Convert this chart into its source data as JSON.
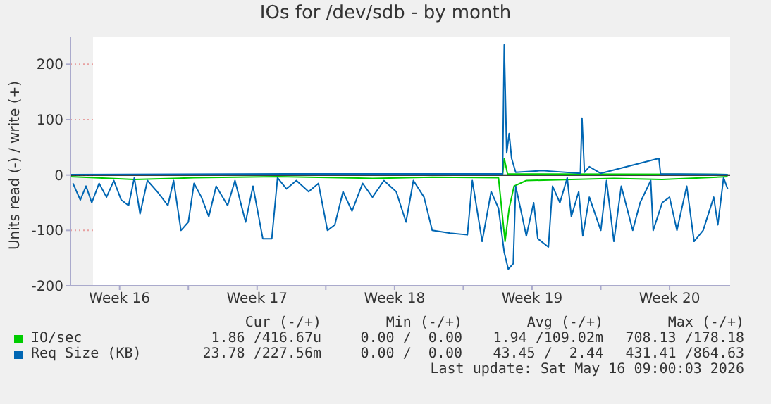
{
  "chart_data": {
    "type": "line",
    "title": "IOs for /dev/sdb - by month",
    "ylabel": "Units read (-) / write (+)",
    "xlim": [
      "2026-04-14T00:00",
      "2026-05-17T14:00"
    ],
    "xticks": [
      {
        "value": "2026-04-16T12:00",
        "label": "Week 16"
      },
      {
        "value": "2026-04-20T00:00",
        "label": null
      },
      {
        "value": "2026-04-23T12:00",
        "label": "Week 17"
      },
      {
        "value": "2026-04-27T00:00",
        "label": null
      },
      {
        "value": "2026-04-30T12:00",
        "label": "Week 18"
      },
      {
        "value": "2026-05-04T00:00",
        "label": null
      },
      {
        "value": "2026-05-07T12:00",
        "label": "Week 19"
      },
      {
        "value": "2026-05-11T00:00",
        "label": null
      },
      {
        "value": "2026-05-14T12:00",
        "label": "Week 20"
      }
    ],
    "ylim": [
      -200,
      250
    ],
    "yticks": [
      -200,
      -100,
      0,
      100,
      200
    ],
    "grid": true,
    "legend": "bottom",
    "marker": "none",
    "line_style": "solid",
    "ref_lines": [
      {
        "axis": "y",
        "value": 0,
        "color": "#000000"
      }
    ],
    "series": [
      {
        "name": "IO/sec",
        "color": "#00cc00",
        "x": [
          "2026-04-14T00:00",
          "2026-04-17T06:00",
          "2026-04-20T07:00",
          "2026-04-24T13:00",
          "2026-04-29T09:00",
          "2026-05-02T10:00",
          "2026-05-05T19:00",
          "2026-05-06T03:00",
          "2026-05-06T08:00",
          "2026-05-06T14:00",
          "2026-05-07T05:00",
          "2026-05-09T12:00",
          "2026-05-11T16:00",
          "2026-05-14T03:00",
          "2026-05-17T11:00"
        ],
        "values": [
          -3,
          -8,
          -5,
          -3,
          -6,
          -4,
          -5,
          -120,
          -60,
          -20,
          -10,
          -8,
          -6,
          -8,
          -3
        ]
      },
      {
        "color": "#00cc00",
        "x": [
          "2026-04-14T00:00",
          "2026-05-06T00:00",
          "2026-05-06T02:00",
          "2026-05-06T06:00",
          "2026-05-17T11:00"
        ],
        "values": [
          1,
          1,
          30,
          2,
          1
        ]
      },
      {
        "name": "Req Size (KB)",
        "color": "#0066b3",
        "x": [
          "2026-04-14T03:00",
          "2026-04-14T12:00",
          "2026-04-14T19:00",
          "2026-04-15T02:00",
          "2026-04-15T11:00",
          "2026-04-15T20:00",
          "2026-04-16T05:00",
          "2026-04-16T14:00",
          "2026-04-16T23:00",
          "2026-04-17T06:00",
          "2026-04-17T13:00",
          "2026-04-17T22:00",
          "2026-04-18T10:00",
          "2026-04-18T23:00",
          "2026-04-19T06:00",
          "2026-04-19T15:00",
          "2026-04-20T00:00",
          "2026-04-20T07:00",
          "2026-04-20T16:00",
          "2026-04-21T01:00",
          "2026-04-21T10:00",
          "2026-04-22T00:00",
          "2026-04-22T09:00",
          "2026-04-22T22:00",
          "2026-04-23T07:00",
          "2026-04-23T19:00",
          "2026-04-24T06:00",
          "2026-04-24T13:00",
          "2026-04-25T00:00",
          "2026-04-25T12:00",
          "2026-04-26T03:00",
          "2026-04-26T15:00",
          "2026-04-27T02:00",
          "2026-04-27T11:00",
          "2026-04-27T21:00",
          "2026-04-28T08:00",
          "2026-04-28T21:00",
          "2026-04-29T09:00",
          "2026-04-29T23:00",
          "2026-04-30T14:00",
          "2026-05-01T02:00",
          "2026-05-01T11:00",
          "2026-05-02T00:00",
          "2026-05-02T10:00",
          "2026-05-03T08:00",
          "2026-05-04T05:00",
          "2026-05-04T11:00",
          "2026-05-04T23:00",
          "2026-05-05T10:00",
          "2026-05-05T19:00",
          "2026-05-06T02:00",
          "2026-05-06T07:00",
          "2026-05-06T13:00",
          "2026-05-06T16:00",
          "2026-05-07T05:00",
          "2026-05-07T14:00",
          "2026-05-07T19:00",
          "2026-05-08T08:00",
          "2026-05-08T13:00",
          "2026-05-08T22:00",
          "2026-05-09T07:00",
          "2026-05-09T12:00",
          "2026-05-09T21:00",
          "2026-05-10T02:00",
          "2026-05-10T10:00",
          "2026-05-11T00:00",
          "2026-05-11T07:00",
          "2026-05-11T16:00",
          "2026-05-12T01:00",
          "2026-05-12T15:00",
          "2026-05-13T00:00",
          "2026-05-13T13:00",
          "2026-05-13T16:00",
          "2026-05-14T03:00",
          "2026-05-14T12:00",
          "2026-05-14T21:00",
          "2026-05-15T09:00",
          "2026-05-15T18:00",
          "2026-05-16T05:00",
          "2026-05-16T18:00",
          "2026-05-16T23:00",
          "2026-05-17T06:00",
          "2026-05-17T11:00"
        ],
        "values": [
          -15,
          -45,
          -20,
          -50,
          -15,
          -40,
          -10,
          -45,
          -55,
          -5,
          -70,
          -10,
          -30,
          -55,
          -10,
          -100,
          -85,
          -15,
          -40,
          -75,
          -20,
          -55,
          -10,
          -85,
          -20,
          -115,
          -115,
          -5,
          -25,
          -10,
          -30,
          -15,
          -100,
          -90,
          -30,
          -65,
          -15,
          -40,
          -10,
          -30,
          -85,
          -10,
          -40,
          -100,
          -105,
          -108,
          -10,
          -120,
          -30,
          -60,
          -140,
          -170,
          -160,
          -20,
          -110,
          -50,
          -115,
          -130,
          -20,
          -50,
          -5,
          -75,
          -30,
          -110,
          -40,
          -100,
          -10,
          -120,
          -20,
          -100,
          -50,
          -10,
          -100,
          -50,
          -40,
          -100,
          -20,
          -120,
          -100,
          -40,
          -90,
          -5,
          -25
        ]
      },
      {
        "color": "#0066b3",
        "x": [
          "2026-04-14T00:00",
          "2026-04-25T00:00",
          "2026-05-06T00:00",
          "2026-05-06T02:00",
          "2026-05-06T05:00",
          "2026-05-06T08:00",
          "2026-05-06T11:00",
          "2026-05-06T16:00",
          "2026-05-08T00:00",
          "2026-05-09T23:00",
          "2026-05-10T01:00",
          "2026-05-10T04:00",
          "2026-05-10T10:00",
          "2026-05-11T00:00",
          "2026-05-13T23:00",
          "2026-05-14T01:00",
          "2026-05-17T11:00"
        ],
        "values": [
          1,
          2,
          2,
          235,
          40,
          75,
          30,
          5,
          8,
          3,
          103,
          5,
          15,
          3,
          30,
          2,
          1
        ]
      }
    ],
    "annotations": [
      "Cur (-/+)",
      "Min (-/+)",
      "Avg (-/+)",
      "Max (-/+)",
      "1.86 /416.67u",
      "0.00 /  0.00",
      "1.94 /109.02m",
      "708.13 /178.18",
      "23.78 /227.56m",
      "0.00 /  0.00",
      "43.45 /  2.44",
      "431.41 /864.63",
      "Last update: Sat May 16 09:00:03 2026"
    ]
  }
}
